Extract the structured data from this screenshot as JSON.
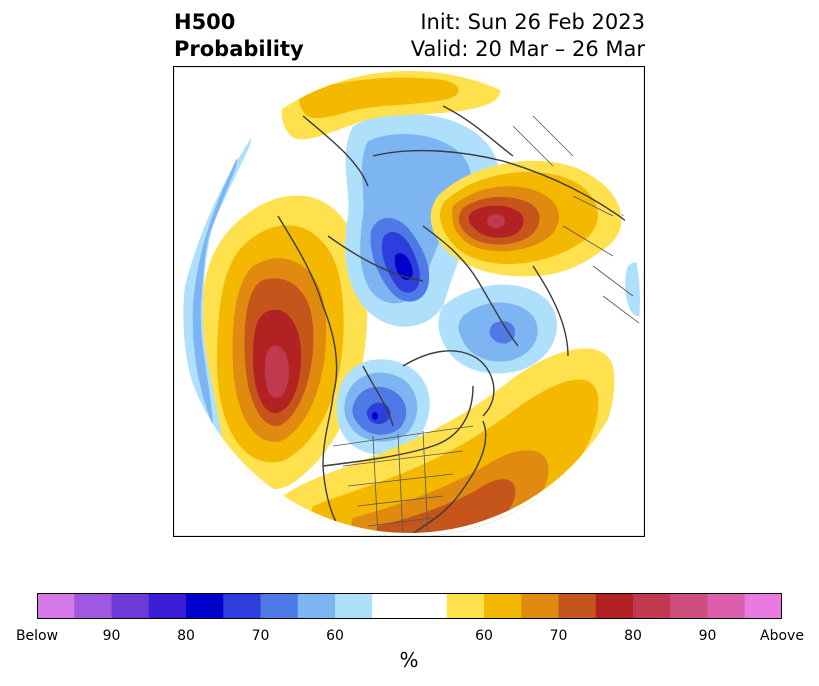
{
  "title": {
    "left_line1": "H500",
    "left_line2": "Probability",
    "right_line1": "Init: Sun 26 Feb 2023",
    "right_line2": "Valid: 20 Mar – 26 Mar"
  },
  "colorbar": {
    "unit": "%",
    "colors": [
      "#d579e8",
      "#a058e0",
      "#6e3bd8",
      "#3b1fd6",
      "#0000cc",
      "#2c3fdc",
      "#4f79e6",
      "#7db4f2",
      "#aee0fb",
      "#ffffff",
      "#ffffff",
      "#ffe14d",
      "#f4b800",
      "#e08a10",
      "#c5551a",
      "#b22222",
      "#c0394f",
      "#cc4f7e",
      "#dc5fad",
      "#e87ae0"
    ],
    "ticks": [
      {
        "label": "Below",
        "index": 0
      },
      {
        "label": "90",
        "index": 2
      },
      {
        "label": "80",
        "index": 4
      },
      {
        "label": "70",
        "index": 6
      },
      {
        "label": "60",
        "index": 8
      },
      {
        "label": "60",
        "index": 12
      },
      {
        "label": "70",
        "index": 14
      },
      {
        "label": "80",
        "index": 16
      },
      {
        "label": "90",
        "index": 18
      },
      {
        "label": "Above",
        "index": 20
      }
    ]
  },
  "map": {
    "projection": "north-polar-stereographic",
    "variable": "500 hPa height tercile probability",
    "anomalies": [
      {
        "sign": "above",
        "region": "Northeast Pacific / Gulf of Alaska",
        "peak_category": "80"
      },
      {
        "sign": "above",
        "region": "Central Siberia",
        "peak_category": "80"
      },
      {
        "sign": "above",
        "region": "Eastern United States",
        "peak_category": "70"
      },
      {
        "sign": "above",
        "region": "Scandinavia / Barents Sea",
        "peak_category": "60"
      },
      {
        "sign": "below",
        "region": "Canadian Prairies",
        "peak_category": "80"
      },
      {
        "sign": "below",
        "region": "Siberian Arctic / Kara Sea",
        "peak_category": "80"
      },
      {
        "sign": "below",
        "region": "Greenland / Baffin region",
        "peak_category": "70"
      },
      {
        "sign": "below",
        "region": "North Pacific west",
        "peak_category": "60"
      }
    ]
  }
}
